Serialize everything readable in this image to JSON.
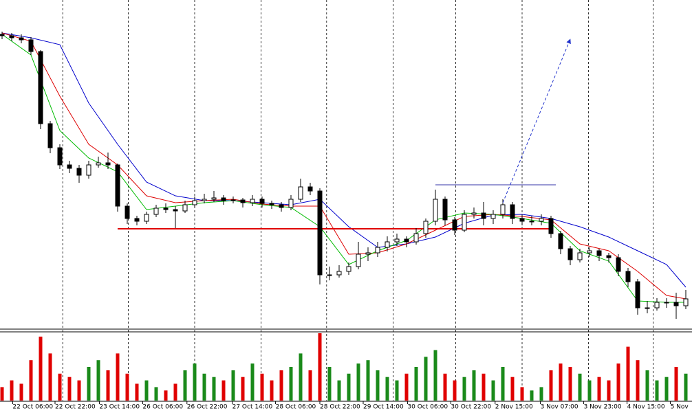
{
  "chart_data": {
    "type": "candlestick",
    "ylim": [
      0,
      478
    ],
    "candles": [
      [
        428,
        432,
        421,
        426
      ],
      [
        426,
        430,
        418,
        423
      ],
      [
        423,
        428,
        415,
        420
      ],
      [
        420,
        424,
        398,
        403
      ],
      [
        403,
        405,
        290,
        298
      ],
      [
        298,
        302,
        255,
        263
      ],
      [
        263,
        268,
        232,
        238
      ],
      [
        238,
        244,
        226,
        233
      ],
      [
        233,
        238,
        212,
        223
      ],
      [
        223,
        244,
        218,
        238
      ],
      [
        238,
        250,
        234,
        241
      ],
      [
        241,
        256,
        232,
        238
      ],
      [
        238,
        240,
        170,
        178
      ],
      [
        178,
        182,
        152,
        160
      ],
      [
        160,
        164,
        150,
        156
      ],
      [
        156,
        170,
        152,
        166
      ],
      [
        166,
        180,
        162,
        175
      ],
      [
        175,
        182,
        168,
        173
      ],
      [
        173,
        178,
        146,
        171
      ],
      [
        171,
        186,
        168,
        180
      ],
      [
        180,
        192,
        176,
        186
      ],
      [
        186,
        196,
        182,
        188
      ],
      [
        188,
        200,
        184,
        190
      ],
      [
        190,
        194,
        180,
        186
      ],
      [
        186,
        192,
        182,
        187
      ],
      [
        187,
        190,
        176,
        183
      ],
      [
        183,
        194,
        178,
        188
      ],
      [
        188,
        192,
        176,
        182
      ],
      [
        182,
        186,
        174,
        180
      ],
      [
        180,
        184,
        170,
        176
      ],
      [
        176,
        194,
        172,
        188
      ],
      [
        188,
        218,
        184,
        206
      ],
      [
        206,
        212,
        194,
        200
      ],
      [
        200,
        204,
        64,
        78
      ],
      [
        78,
        90,
        70,
        78
      ],
      [
        78,
        92,
        74,
        83
      ],
      [
        83,
        96,
        78,
        90
      ],
      [
        90,
        126,
        86,
        108
      ],
      [
        108,
        118,
        98,
        110
      ],
      [
        110,
        126,
        104,
        118
      ],
      [
        118,
        134,
        112,
        126
      ],
      [
        126,
        138,
        120,
        130
      ],
      [
        130,
        134,
        118,
        126
      ],
      [
        126,
        146,
        122,
        138
      ],
      [
        138,
        160,
        132,
        156
      ],
      [
        156,
        202,
        150,
        188
      ],
      [
        188,
        192,
        150,
        158
      ],
      [
        158,
        162,
        136,
        143
      ],
      [
        143,
        172,
        140,
        166
      ],
      [
        166,
        176,
        160,
        168
      ],
      [
        168,
        184,
        150,
        160
      ],
      [
        160,
        172,
        152,
        166
      ],
      [
        166,
        188,
        160,
        180
      ],
      [
        180,
        184,
        152,
        160
      ],
      [
        160,
        166,
        150,
        156
      ],
      [
        156,
        164,
        150,
        156
      ],
      [
        156,
        166,
        150,
        160
      ],
      [
        160,
        164,
        132,
        138
      ],
      [
        138,
        142,
        108,
        116
      ],
      [
        116,
        120,
        92,
        100
      ],
      [
        100,
        116,
        96,
        110
      ],
      [
        110,
        118,
        104,
        113
      ],
      [
        113,
        116,
        98,
        106
      ],
      [
        106,
        110,
        96,
        103
      ],
      [
        103,
        108,
        76,
        83
      ],
      [
        83,
        88,
        60,
        68
      ],
      [
        68,
        72,
        20,
        30
      ],
      [
        30,
        40,
        22,
        30
      ],
      [
        30,
        44,
        26,
        38
      ],
      [
        38,
        44,
        30,
        38
      ],
      [
        38,
        52,
        14,
        33
      ],
      [
        33,
        56,
        28,
        43
      ]
    ],
    "ma_x": [
      0,
      3,
      6,
      9,
      12,
      15,
      18,
      21,
      24,
      27,
      30,
      33,
      36,
      39,
      42,
      45,
      48,
      51,
      54,
      57,
      60,
      63,
      66,
      69,
      71
    ],
    "series": [
      {
        "color": "#0000cc",
        "values": [
          430,
          423,
          413,
          328,
          268,
          213,
          193,
          186,
          186,
          183,
          180,
          188,
          148,
          118,
          123,
          133,
          153,
          165,
          166,
          160,
          148,
          133,
          113,
          93,
          60
        ]
      },
      {
        "color": "#dd0000",
        "values": [
          430,
          418,
          338,
          268,
          238,
          193,
          183,
          186,
          188,
          181,
          178,
          178,
          108,
          110,
          123,
          143,
          163,
          166,
          163,
          158,
          123,
          113,
          83,
          48,
          43
        ]
      },
      {
        "color": "#00bb00",
        "values": [
          428,
          398,
          288,
          248,
          228,
          173,
          178,
          183,
          186,
          180,
          176,
          148,
          93,
          113,
          128,
          158,
          168,
          166,
          160,
          153,
          113,
          98,
          40,
          38,
          38
        ]
      }
    ],
    "volume": [
      20,
      30,
      25,
      60,
      95,
      70,
      40,
      35,
      30,
      50,
      60,
      45,
      70,
      40,
      25,
      30,
      20,
      15,
      25,
      45,
      55,
      40,
      35,
      30,
      45,
      35,
      55,
      40,
      30,
      45,
      50,
      70,
      45,
      100,
      50,
      30,
      40,
      55,
      60,
      45,
      35,
      30,
      40,
      50,
      65,
      75,
      40,
      30,
      35,
      45,
      40,
      30,
      50,
      35,
      20,
      15,
      20,
      45,
      55,
      50,
      40,
      30,
      35,
      30,
      55,
      80,
      60,
      45,
      30,
      35,
      50,
      40
    ],
    "vlim": [
      0,
      100
    ],
    "up_color": "#1a8a1a",
    "down_color": "#e00000",
    "levels": [
      {
        "value": 145,
        "from": 12,
        "to": 57,
        "color": "#e00000"
      },
      {
        "value": 209,
        "from": 45,
        "to": 57.5,
        "color": "#3333aa"
      }
    ],
    "arrow": {
      "from": [
        52,
        183
      ],
      "to": [
        59,
        421
      ],
      "color": "#2233cc"
    },
    "separators": [
      6.3,
      13.1,
      20,
      26.9,
      33.7,
      40.6,
      47.1,
      54,
      60.9,
      67.6
    ],
    "xticks": [
      {
        "value": 1.1,
        "label": "22 Oct 06:00"
      },
      {
        "value": 5.5,
        "label": "22 Oct 22:00"
      },
      {
        "value": 10.1,
        "label": "23 Oct 14:00"
      },
      {
        "value": 14.6,
        "label": "26 Oct 06:00"
      },
      {
        "value": 19.2,
        "label": "26 Oct 22:00"
      },
      {
        "value": 23.9,
        "label": "27 Oct 14:00"
      },
      {
        "value": 28.4,
        "label": "28 Oct 06:00"
      },
      {
        "value": 33,
        "label": "28 Oct 22:00"
      },
      {
        "value": 37.5,
        "label": "29 Oct 14:00"
      },
      {
        "value": 42.1,
        "label": "30 Oct 06:00"
      },
      {
        "value": 46.6,
        "label": "30 Oct 22:00"
      },
      {
        "value": 51.2,
        "label": "2 Nov 15:00"
      },
      {
        "value": 55.9,
        "label": "3 Nov 07:00"
      },
      {
        "value": 60.4,
        "label": "3 Nov 23:00"
      },
      {
        "value": 64.9,
        "label": "4 Nov 15:00"
      },
      {
        "value": 69.4,
        "label": "5 Nov"
      }
    ]
  }
}
